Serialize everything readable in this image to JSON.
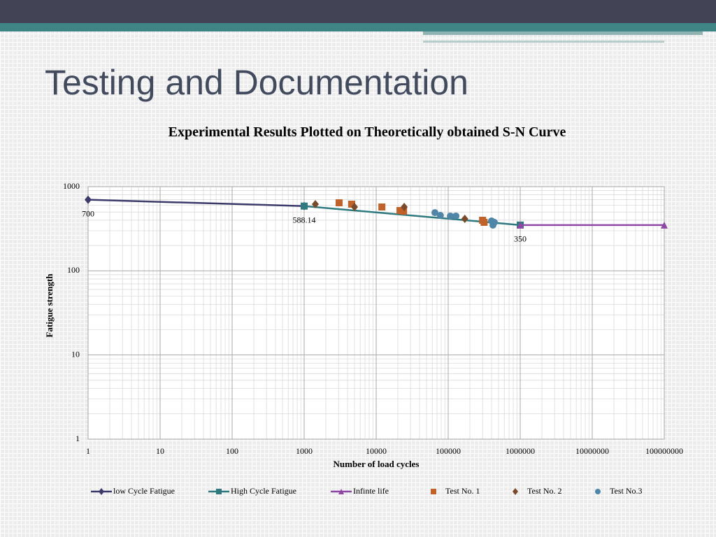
{
  "slide": {
    "title": "Testing and Documentation"
  },
  "chart_data": {
    "type": "scatter",
    "title": "Experimental Results Plotted on Theoretically obtained S-N Curve",
    "x_label": "Number of load cycles",
    "y_label": "Fatigue strength",
    "log_x": true,
    "log_y": true,
    "grid": true,
    "minor_grid": true,
    "legend": "bottom",
    "xlim": [
      1,
      100000000
    ],
    "xticks": [
      1,
      10,
      100,
      1000,
      10000,
      100000,
      1000000,
      10000000,
      100000000
    ],
    "ylim": [
      1,
      1000
    ],
    "yticks": [
      1,
      10,
      100,
      1000
    ],
    "series": [
      {
        "name": "low Cycle Fatigue",
        "color": "#3b3a6b",
        "line": true,
        "marker": "diamond",
        "x": [
          1,
          1000
        ],
        "values": [
          700,
          588.14
        ],
        "label_points": [
          0
        ]
      },
      {
        "name": "High Cycle Fatigue",
        "color": "#2e7a7f",
        "line": true,
        "marker": "square",
        "x": [
          1000,
          1000000
        ],
        "values": [
          588.14,
          350
        ],
        "label_points": [
          0,
          1
        ]
      },
      {
        "name": "Infinte life",
        "color": "#8e48a3",
        "line": true,
        "marker": "triangle",
        "x": [
          1000000,
          100000000
        ],
        "values": [
          350,
          350
        ],
        "label_points": []
      },
      {
        "name": "Test No. 1",
        "color": "#c0622a",
        "line": false,
        "marker": "square",
        "x": [
          3055,
          4570,
          12000,
          21400,
          24000,
          300000,
          315000
        ],
        "values": [
          644,
          620,
          574,
          521,
          511,
          399,
          377
        ],
        "label_points": []
      },
      {
        "name": "Test No. 2",
        "color": "#7a4a2a",
        "line": false,
        "marker": "diamond",
        "x": [
          1430,
          5000,
          24500,
          170000
        ],
        "values": [
          620,
          574,
          574,
          415
        ],
        "label_points": []
      },
      {
        "name": "Test No.3",
        "color": "#4f86a8",
        "line": false,
        "marker": "circle",
        "x": [
          65400,
          78000,
          107000,
          128000,
          400000,
          418000,
          438000
        ],
        "values": [
          492,
          456,
          448,
          448,
          392,
          349,
          377
        ],
        "label_points": []
      }
    ]
  }
}
